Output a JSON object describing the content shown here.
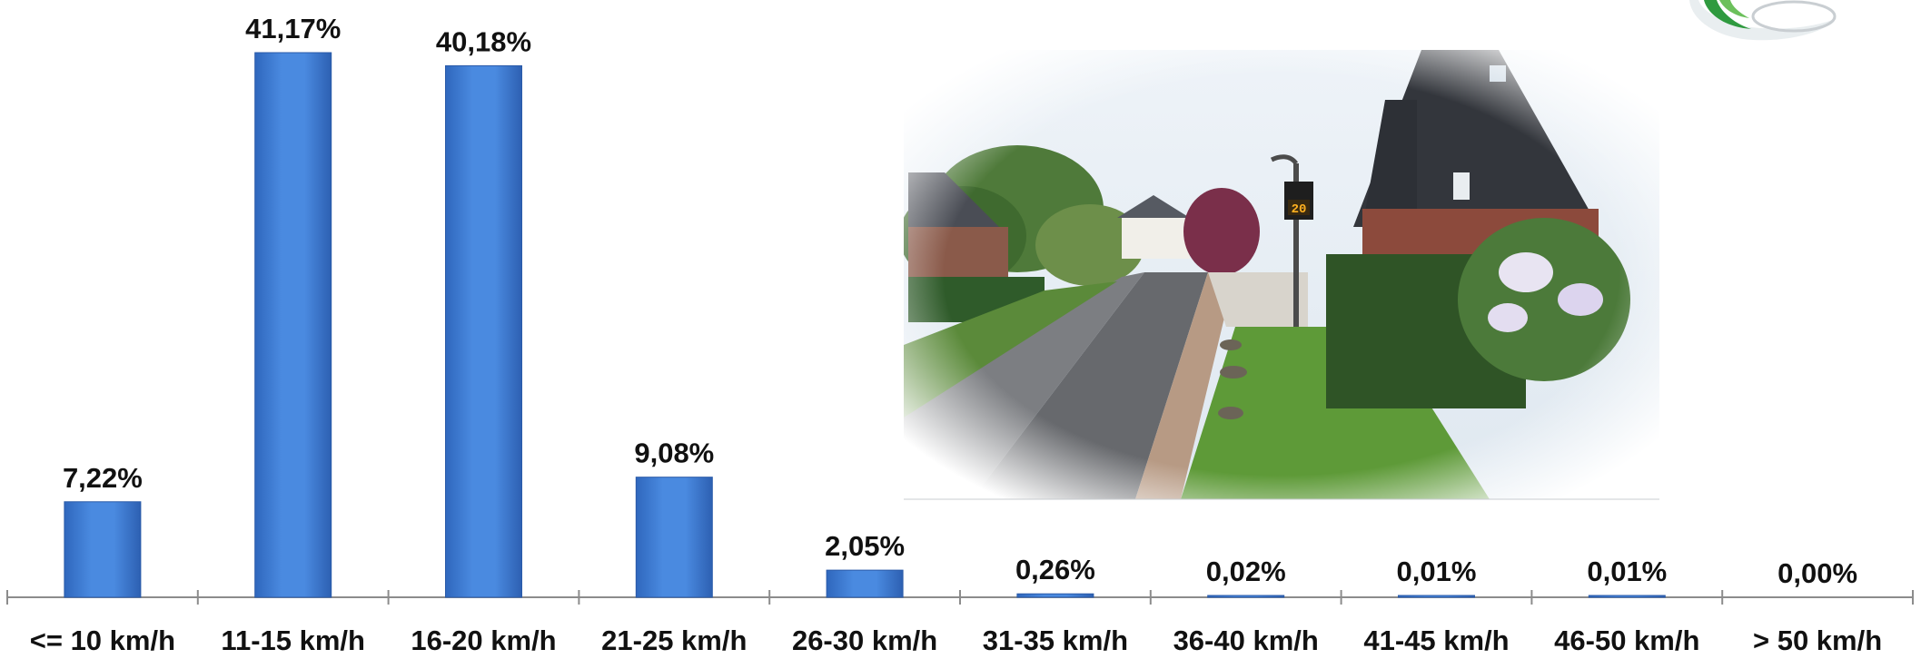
{
  "chart_data": {
    "type": "bar",
    "title": "",
    "xlabel": "",
    "ylabel": "",
    "categories": [
      "<= 10 km/h",
      "11-15 km/h",
      "16-20 km/h",
      "21-25 km/h",
      "26-30 km/h",
      "31-35 km/h",
      "36-40 km/h",
      "41-45 km/h",
      "46-50 km/h",
      "> 50 km/h"
    ],
    "values": [
      7.22,
      41.17,
      40.18,
      9.08,
      2.05,
      0.26,
      0.02,
      0.01,
      0.01,
      0.0
    ],
    "data_labels": [
      "7,22%",
      "41,17%",
      "40,18%",
      "9,08%",
      "2,05%",
      "0,26%",
      "0,02%",
      "0,01%",
      "0,01%",
      "0,00%"
    ],
    "ylim": [
      0,
      41.17
    ],
    "grid": false,
    "legend": "none",
    "bar_color": "#3a7bd5"
  },
  "colors": {
    "bar_light": "#5a96e6",
    "bar_dark": "#2e63b8",
    "axis": "#8c8c8c"
  }
}
